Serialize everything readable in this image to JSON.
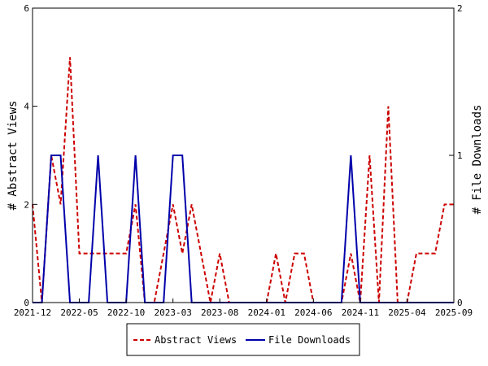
{
  "chart_data": {
    "type": "line",
    "title": "",
    "x_ticks": [
      "2021-12",
      "2022-05",
      "2022-10",
      "2023-03",
      "2023-08",
      "2024-01",
      "2024-06",
      "2024-11",
      "2025-04",
      "2025-09"
    ],
    "x_range": [
      0,
      45
    ],
    "left_axis": {
      "label": "# Abstract Views",
      "ticks": [
        "0",
        "2",
        "4",
        "6"
      ],
      "range": [
        0,
        6
      ]
    },
    "right_axis": {
      "label": "# File Downloads",
      "ticks": [
        "0",
        "1",
        "2"
      ],
      "range": [
        0,
        2
      ]
    },
    "legend_position": "bottom-center",
    "grid": false,
    "series": [
      {
        "name": "Abstract Views",
        "axis": "left",
        "color": "#cc0000",
        "dash": true,
        "x": [
          0,
          1,
          2,
          3,
          4,
          5,
          6,
          7,
          8,
          9,
          10,
          11,
          12,
          13,
          14,
          15,
          16,
          17,
          18,
          19,
          20,
          21,
          22,
          23,
          24,
          25,
          26,
          27,
          28,
          29,
          30,
          31,
          32,
          33,
          34,
          35,
          36,
          37,
          38,
          39,
          40,
          41,
          42,
          43,
          44,
          45
        ],
        "values": [
          2,
          0,
          3,
          2,
          5,
          1,
          1,
          1,
          1,
          1,
          1,
          2,
          0,
          0,
          1,
          2,
          1,
          2,
          1,
          0,
          1,
          0,
          0,
          0,
          0,
          0,
          1,
          0,
          1,
          1,
          0,
          0,
          0,
          0,
          1,
          0,
          3,
          0,
          4,
          0,
          0,
          1,
          1,
          1,
          2,
          2
        ]
      },
      {
        "name": "File Downloads",
        "axis": "right",
        "color": "#0000aa",
        "dash": false,
        "x": [
          0,
          1,
          2,
          3,
          4,
          5,
          6,
          7,
          8,
          9,
          10,
          11,
          12,
          13,
          14,
          15,
          16,
          17,
          18,
          19,
          20,
          21,
          22,
          23,
          24,
          25,
          26,
          27,
          28,
          29,
          30,
          31,
          32,
          33,
          34,
          35,
          36,
          37,
          38,
          39,
          40,
          41,
          42,
          43,
          44,
          45
        ],
        "values": [
          0,
          0,
          1,
          1,
          0,
          0,
          0,
          1,
          0,
          0,
          0,
          1,
          0,
          0,
          0,
          1,
          1,
          0,
          0,
          0,
          0,
          0,
          0,
          0,
          0,
          0,
          0,
          0,
          0,
          0,
          0,
          0,
          0,
          0,
          1,
          0,
          0,
          0,
          0,
          0,
          0,
          0,
          0,
          0,
          0,
          0
        ]
      }
    ]
  }
}
